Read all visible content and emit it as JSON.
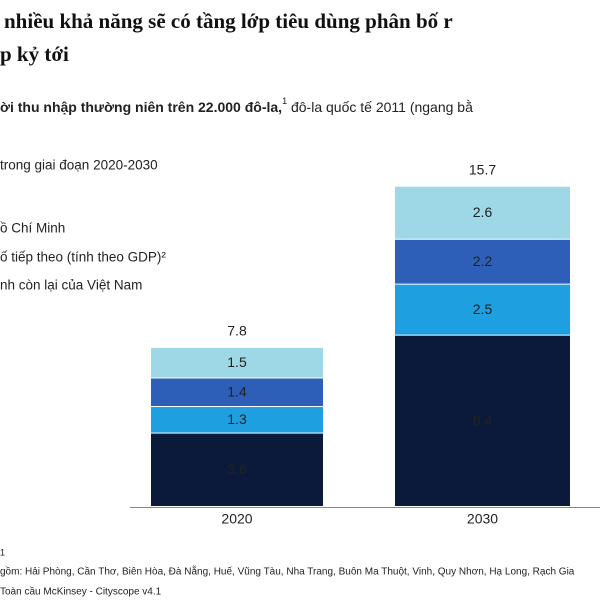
{
  "chart_data": {
    "type": "stacked_bar",
    "title_lines": [
      "nhiều khả năng sẽ có tầng lớp tiêu dùng phân bố r",
      "p kỷ tới"
    ],
    "subtitle_bold": "ời thu nhập thường niên trên 22.000 đô-la,",
    "subtitle_sup": "1",
    "subtitle_rest": " đô-la quốc tế 2011 (ngang bằ",
    "legend_title": "trong giai đoạn 2020-2030",
    "categories": [
      "2020",
      "2030"
    ],
    "totals": [
      7.8,
      15.7
    ],
    "series": [
      {
        "name": "nh còn lại của Việt Nam",
        "color": "#0b1a3a",
        "values": [
          3.6,
          8.4
        ]
      },
      {
        "name": "ố tiếp theo (tính theo GDP)²",
        "color": "#1e9fe0",
        "values": [
          1.3,
          2.5
        ]
      },
      {
        "name": "ồ Chí Minh",
        "color": "#2d5fb8",
        "values": [
          1.4,
          2.2
        ]
      },
      {
        "name": null,
        "color": "#9ed8e6",
        "values": [
          1.5,
          2.6
        ]
      }
    ],
    "footnotes": [
      "1",
      "gồm: Hải Phòng, Cần Thơ, Biên Hòa, Đà Nẵng, Huế, Vũng Tàu, Nha Trang, Buôn Ma Thuột, Vinh, Quy Nhơn, Hạ Long, Rạch Gia",
      "Toàn cầu McKinsey - Cityscope v4.1"
    ]
  }
}
